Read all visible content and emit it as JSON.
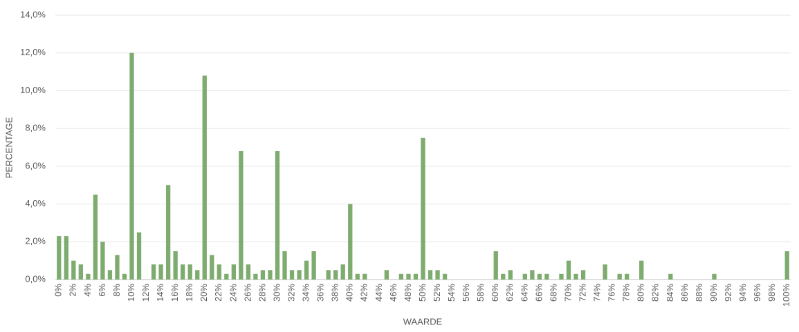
{
  "chart_data": {
    "type": "bar",
    "y_label": "PERCENTAGE",
    "x_label": "WAARDE",
    "categories": [
      "0%",
      null,
      "2%",
      null,
      "4%",
      null,
      "6%",
      null,
      "8%",
      null,
      "10%",
      null,
      "12%",
      null,
      "14%",
      null,
      "16%",
      null,
      "18%",
      null,
      "20%",
      null,
      "22%",
      null,
      "24%",
      null,
      "26%",
      null,
      "28%",
      null,
      "30%",
      null,
      "32%",
      null,
      "34%",
      null,
      "36%",
      null,
      "38%",
      null,
      "40%",
      null,
      "42%",
      null,
      "44%",
      null,
      "46%",
      null,
      "48%",
      null,
      "50%",
      null,
      "52%",
      null,
      "54%",
      null,
      "56%",
      null,
      "58%",
      null,
      "60%",
      null,
      "62%",
      null,
      "64%",
      null,
      "66%",
      null,
      "68%",
      null,
      "70%",
      null,
      "72%",
      null,
      "74%",
      null,
      "76%",
      null,
      "78%",
      null,
      "80%",
      null,
      "82%",
      null,
      "84%",
      null,
      "86%",
      null,
      "88%",
      null,
      "90%",
      null,
      "92%",
      null,
      "94%",
      null,
      "96%",
      null,
      "98%",
      null,
      "100%"
    ],
    "values": [
      2.3,
      2.3,
      1.0,
      0.8,
      0.3,
      4.5,
      2.0,
      0.5,
      1.3,
      0.3,
      12.0,
      2.5,
      0,
      0.8,
      0.8,
      5.0,
      1.5,
      0.8,
      0.8,
      0.5,
      10.8,
      1.3,
      0.8,
      0.3,
      0.8,
      6.8,
      0.8,
      0.3,
      0.5,
      0.5,
      6.8,
      1.5,
      0.5,
      0.5,
      1.0,
      1.5,
      0,
      0.5,
      0.5,
      0.8,
      4.0,
      0.3,
      0.3,
      0,
      0,
      0.5,
      0,
      0.3,
      0.3,
      0.3,
      7.5,
      0.5,
      0.5,
      0.3,
      0,
      0,
      0,
      0,
      0,
      0,
      1.5,
      0.3,
      0.5,
      0,
      0.3,
      0.5,
      0.3,
      0.3,
      0,
      0.3,
      1.0,
      0.3,
      0.5,
      0,
      0,
      0.8,
      0,
      0.3,
      0.3,
      0,
      1.0,
      0,
      0,
      0,
      0.3,
      0,
      0,
      0,
      0,
      0,
      0.3,
      0,
      0,
      0,
      0,
      0,
      0,
      0,
      0,
      0,
      1.5
    ],
    "color": "#7eab6e",
    "ylim": [
      0,
      14
    ],
    "yticks": [
      {
        "value": 0,
        "label": "0,0%"
      },
      {
        "value": 2,
        "label": "2,0%"
      },
      {
        "value": 4,
        "label": "4,0%"
      },
      {
        "value": 6,
        "label": "6,0%"
      },
      {
        "value": 8,
        "label": "8,0%"
      },
      {
        "value": 10,
        "label": "10,0%"
      },
      {
        "value": 12,
        "label": "12,0%"
      },
      {
        "value": 14,
        "label": "14,0%"
      }
    ],
    "grid": true
  }
}
